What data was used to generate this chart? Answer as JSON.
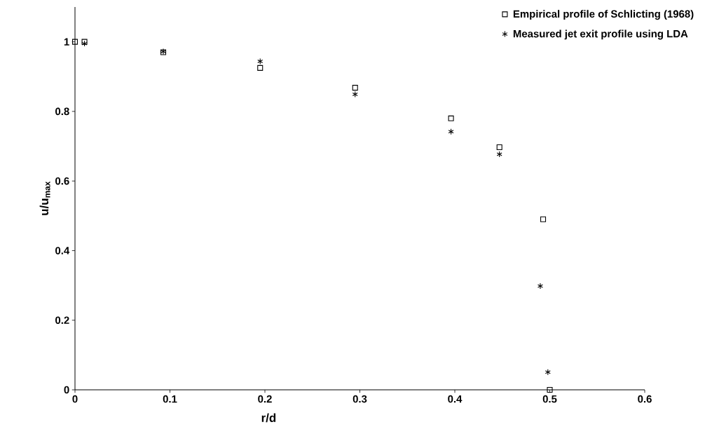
{
  "chart_data": {
    "type": "scatter",
    "xlabel": "r/d",
    "ylabel": "u/u$_{max}$",
    "xlim": [
      0,
      0.6
    ],
    "ylim": [
      0,
      1.1
    ],
    "xticks": [
      0,
      0.1,
      0.2,
      0.3,
      0.4,
      0.5,
      0.6
    ],
    "yticks": [
      0,
      0.2,
      0.4,
      0.6,
      0.8,
      1
    ],
    "grid": false,
    "legend": "top right",
    "series": [
      {
        "name": "Empirical profile of Schlicting (1968)",
        "color": "#000000",
        "marker": "square",
        "x": [
          0,
          0.01,
          0.093,
          0.195,
          0.295,
          0.396,
          0.447,
          0.493,
          0.5
        ],
        "values": [
          1,
          1,
          0.97,
          0.925,
          0.868,
          0.78,
          0.697,
          0.49,
          0
        ]
      },
      {
        "name": "Measured jet exit profile using LDA",
        "color": "#000000",
        "marker": "cross",
        "x": [
          0.01,
          0.093,
          0.195,
          0.295,
          0.396,
          0.447,
          0.49,
          0.498
        ],
        "values": [
          0.995,
          0.972,
          0.944,
          0.849,
          0.742,
          0.677,
          0.298,
          0.051
        ]
      }
    ]
  }
}
